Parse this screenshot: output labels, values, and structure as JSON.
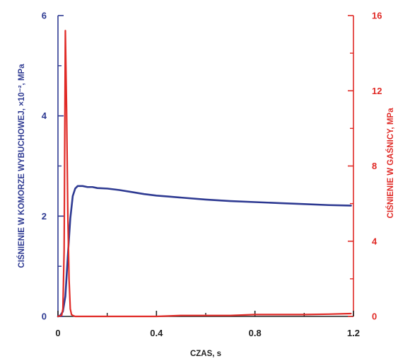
{
  "chart_data": {
    "type": "line",
    "xlabel": "CZAS, s",
    "ylabel_left": "CIŚNIENIE W KOMORZE WYBUCHOWEJ, ×10⁻², MPa",
    "ylabel_right": "CIŚNIENIE W GAŚNICY, MPa",
    "xlim": [
      0,
      1.2
    ],
    "ylim_left": [
      0,
      6
    ],
    "ylim_right": [
      0,
      16
    ],
    "x_ticks": [
      "0",
      "0.4",
      "0.8",
      "1.2"
    ],
    "y_ticks_left": [
      "0",
      "2",
      "4",
      "6"
    ],
    "y_ticks_right": [
      "0",
      "4",
      "8",
      "12",
      "16"
    ],
    "grid": false,
    "colors": {
      "left_axis": "#2e3a92",
      "right_axis": "#e02a26",
      "x_axis": "#222222"
    },
    "series": [
      {
        "axis": "left",
        "color": "#2e3a92",
        "x": [
          0,
          0.01,
          0.02,
          0.03,
          0.04,
          0.05,
          0.06,
          0.07,
          0.08,
          0.09,
          0.1,
          0.12,
          0.14,
          0.16,
          0.2,
          0.25,
          0.3,
          0.35,
          0.4,
          0.45,
          0.5,
          0.6,
          0.7,
          0.8,
          0.9,
          1.0,
          1.1,
          1.19
        ],
        "y": [
          0,
          0.02,
          0.1,
          0.4,
          1.2,
          1.95,
          2.4,
          2.55,
          2.6,
          2.6,
          2.6,
          2.58,
          2.58,
          2.56,
          2.55,
          2.52,
          2.48,
          2.44,
          2.41,
          2.39,
          2.37,
          2.33,
          2.3,
          2.28,
          2.26,
          2.24,
          2.22,
          2.21
        ]
      },
      {
        "axis": "right",
        "color": "#e02a26",
        "x": [
          0,
          0.015,
          0.02,
          0.025,
          0.03,
          0.035,
          0.04,
          0.045,
          0.05,
          0.055,
          0.06,
          0.07,
          0.1,
          0.2,
          0.3,
          0.4,
          0.5,
          0.6,
          0.7,
          0.8,
          0.9,
          1.0,
          1.1,
          1.19
        ],
        "y": [
          0,
          0.05,
          0.4,
          3.5,
          15.2,
          11.0,
          5.5,
          2.0,
          0.4,
          0.1,
          0.05,
          0.0,
          0.0,
          0.0,
          0.0,
          0.0,
          0.05,
          0.05,
          0.05,
          0.1,
          0.1,
          0.1,
          0.12,
          0.15
        ]
      }
    ]
  }
}
